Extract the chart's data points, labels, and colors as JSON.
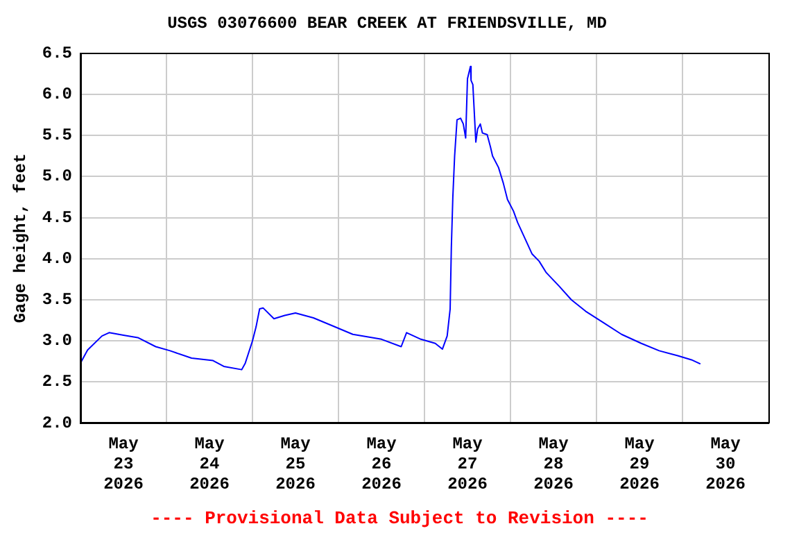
{
  "chart_data": {
    "type": "line",
    "title": "USGS 03076600 BEAR CREEK AT FRIENDSVILLE, MD",
    "ylabel": "Gage height, feet",
    "annotations": [
      "---- Provisional Data Subject to Revision ----"
    ],
    "x": [
      "2026-05-23T00:00",
      "2026-05-23T02:00",
      "2026-05-23T06:00",
      "2026-05-23T08:00",
      "2026-05-23T12:00",
      "2026-05-23T16:00",
      "2026-05-23T21:00",
      "2026-05-24T01:00",
      "2026-05-24T07:00",
      "2026-05-24T13:00",
      "2026-05-24T16:00",
      "2026-05-24T21:00",
      "2026-05-24T22:00",
      "2026-05-25T00:00",
      "2026-05-25T01:00",
      "2026-05-25T02:00",
      "2026-05-25T03:00",
      "2026-05-25T06:00",
      "2026-05-25T09:00",
      "2026-05-25T12:00",
      "2026-05-25T17:00",
      "2026-05-25T22:00",
      "2026-05-26T04:00",
      "2026-05-26T12:00",
      "2026-05-26T17:30",
      "2026-05-26T19:00",
      "2026-05-26T23:00",
      "2026-05-27T03:00",
      "2026-05-27T05:00",
      "2026-05-27T06:20",
      "2026-05-27T07:10",
      "2026-05-27T07:30",
      "2026-05-27T07:55",
      "2026-05-27T08:25",
      "2026-05-27T09:05",
      "2026-05-27T10:05",
      "2026-05-27T10:50",
      "2026-05-27T11:30",
      "2026-05-27T12:00",
      "2026-05-27T12:50",
      "2026-05-27T13:00",
      "2026-05-27T13:30",
      "2026-05-27T14:20",
      "2026-05-27T14:50",
      "2026-05-27T15:35",
      "2026-05-27T16:10",
      "2026-05-27T17:30",
      "2026-05-27T18:25",
      "2026-05-27T19:00",
      "2026-05-27T20:40",
      "2026-05-27T22:00",
      "2026-05-27T23:10",
      "2026-05-28T00:50",
      "2026-05-28T02:00",
      "2026-05-28T04:00",
      "2026-05-28T06:00",
      "2026-05-28T08:00",
      "2026-05-28T10:00",
      "2026-05-28T13:30",
      "2026-05-28T17:00",
      "2026-05-28T21:00",
      "2026-05-29T02:00",
      "2026-05-29T07:00",
      "2026-05-29T12:30",
      "2026-05-29T17:30",
      "2026-05-29T22:40",
      "2026-05-30T02:30",
      "2026-05-30T05:00"
    ],
    "series": [
      {
        "color": "#0000ff",
        "values": [
          2.73,
          2.89,
          3.06,
          3.1,
          3.07,
          3.04,
          2.93,
          2.88,
          2.79,
          2.76,
          2.69,
          2.65,
          2.73,
          3.0,
          3.17,
          3.39,
          3.4,
          3.27,
          3.31,
          3.34,
          3.28,
          3.19,
          3.08,
          3.02,
          2.93,
          3.1,
          3.02,
          2.97,
          2.9,
          3.06,
          3.39,
          4.14,
          4.75,
          5.25,
          5.69,
          5.71,
          5.64,
          5.47,
          6.19,
          6.34,
          6.17,
          6.12,
          5.42,
          5.58,
          5.64,
          5.53,
          5.51,
          5.36,
          5.25,
          5.11,
          4.92,
          4.72,
          4.58,
          4.44,
          4.25,
          4.06,
          3.97,
          3.83,
          3.67,
          3.5,
          3.36,
          3.22,
          3.08,
          2.97,
          2.88,
          2.82,
          2.77,
          2.72
        ]
      }
    ],
    "xlim": [
      "2026-05-23",
      "2026-05-31"
    ],
    "xticks": [
      {
        "value": "2026-05-23",
        "label": null
      },
      {
        "value": "2026-05-23T12:00",
        "label": "May\n23\n2026"
      },
      {
        "value": "2026-05-24",
        "label": null
      },
      {
        "value": "2026-05-24T12:00",
        "label": "May\n24\n2026"
      },
      {
        "value": "2026-05-25",
        "label": null
      },
      {
        "value": "2026-05-25T12:00",
        "label": "May\n25\n2026"
      },
      {
        "value": "2026-05-26",
        "label": null
      },
      {
        "value": "2026-05-26T12:00",
        "label": "May\n26\n2026"
      },
      {
        "value": "2026-05-27",
        "label": null
      },
      {
        "value": "2026-05-27T12:00",
        "label": "May\n27\n2026"
      },
      {
        "value": "2026-05-28",
        "label": null
      },
      {
        "value": "2026-05-28T12:00",
        "label": "May\n28\n2026"
      },
      {
        "value": "2026-05-29",
        "label": null
      },
      {
        "value": "2026-05-29T12:00",
        "label": "May\n29\n2026"
      },
      {
        "value": "2026-05-30",
        "label": null
      },
      {
        "value": "2026-05-30T12:00",
        "label": "May\n30\n2026"
      },
      {
        "value": "2026-05-31",
        "label": null
      }
    ],
    "ylim": [
      2.0,
      6.5
    ],
    "yticks": [
      {
        "value": 2.0,
        "label": "2.0"
      },
      {
        "value": 2.5,
        "label": "2.5"
      },
      {
        "value": 3.0,
        "label": "3.0"
      },
      {
        "value": 3.5,
        "label": "3.5"
      },
      {
        "value": 4.0,
        "label": "4.0"
      },
      {
        "value": 4.5,
        "label": "4.5"
      },
      {
        "value": 5.0,
        "label": "5.0"
      },
      {
        "value": 5.5,
        "label": "5.5"
      },
      {
        "value": 6.0,
        "label": "6.0"
      },
      {
        "value": 6.5,
        "label": "6.5"
      }
    ],
    "grid": true,
    "legend": false,
    "marker": "none",
    "line_style": "solid"
  }
}
